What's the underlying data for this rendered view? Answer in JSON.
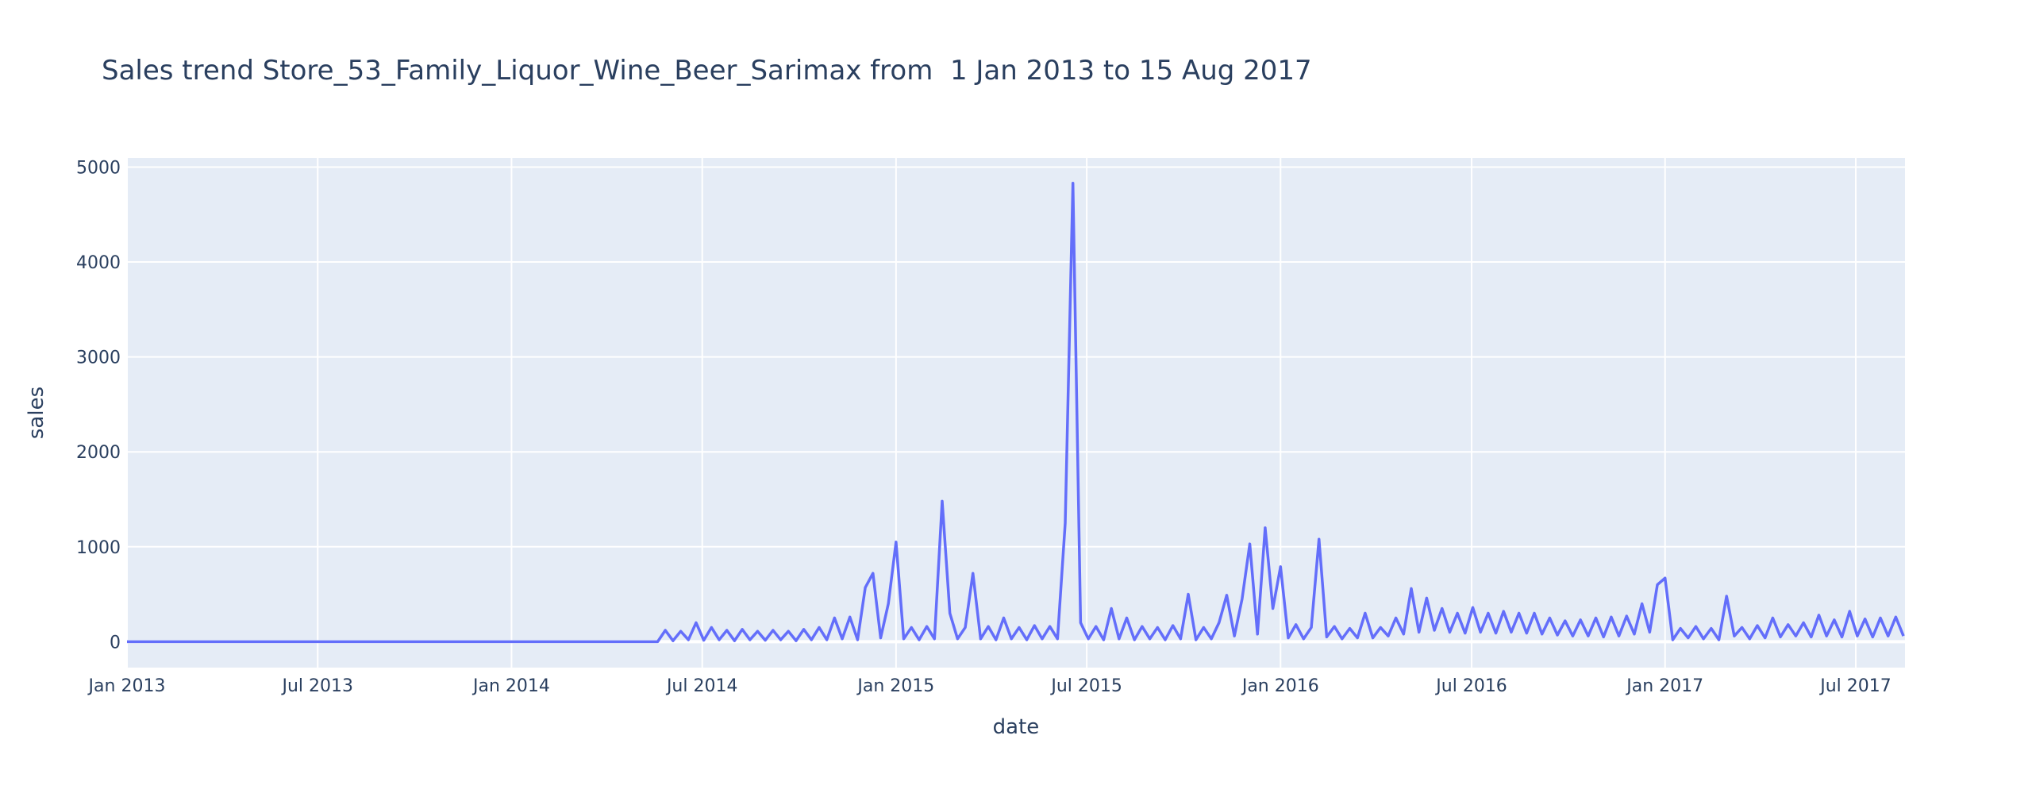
{
  "chart_data": {
    "type": "line",
    "title": "Sales trend Store_53_Family_Liquor_Wine_Beer_Sarimax from  1 Jan 2013 to 15 Aug 2017",
    "x_label": "date",
    "y_label": "sales",
    "color": "#636efa",
    "grid": true,
    "xlim": [
      2013.0,
      2017.624
    ],
    "ylim": [
      -273,
      5096
    ],
    "xticks": [
      {
        "value": 2013.0,
        "label": "Jan 2013"
      },
      {
        "value": 2013.496,
        "label": "Jul 2013"
      },
      {
        "value": 2014.0,
        "label": "Jan 2014"
      },
      {
        "value": 2014.496,
        "label": "Jul 2014"
      },
      {
        "value": 2015.0,
        "label": "Jan 2015"
      },
      {
        "value": 2015.496,
        "label": "Jul 2015"
      },
      {
        "value": 2016.0,
        "label": "Jan 2016"
      },
      {
        "value": 2016.497,
        "label": "Jul 2016"
      },
      {
        "value": 2017.0,
        "label": "Jan 2017"
      },
      {
        "value": 2017.496,
        "label": "Jul 2017"
      }
    ],
    "yticks": [
      0,
      1000,
      2000,
      3000,
      4000,
      5000
    ],
    "x": [
      2013.0,
      2014.38,
      2014.4,
      2014.42,
      2014.44,
      2014.46,
      2014.48,
      2014.5,
      2014.52,
      2014.54,
      2014.56,
      2014.58,
      2014.6,
      2014.62,
      2014.64,
      2014.66,
      2014.68,
      2014.7,
      2014.72,
      2014.74,
      2014.76,
      2014.78,
      2014.8,
      2014.82,
      2014.84,
      2014.86,
      2014.88,
      2014.9,
      2014.92,
      2014.94,
      2014.96,
      2014.98,
      2015.0,
      2015.02,
      2015.04,
      2015.06,
      2015.08,
      2015.1,
      2015.12,
      2015.14,
      2015.16,
      2015.18,
      2015.2,
      2015.22,
      2015.24,
      2015.26,
      2015.28,
      2015.3,
      2015.32,
      2015.34,
      2015.36,
      2015.38,
      2015.4,
      2015.42,
      2015.44,
      2015.46,
      2015.48,
      2015.5,
      2015.52,
      2015.54,
      2015.56,
      2015.58,
      2015.6,
      2015.62,
      2015.64,
      2015.66,
      2015.68,
      2015.7,
      2015.72,
      2015.74,
      2015.76,
      2015.78,
      2015.8,
      2015.82,
      2015.84,
      2015.86,
      2015.88,
      2015.9,
      2015.92,
      2015.94,
      2015.96,
      2015.98,
      2016.0,
      2016.02,
      2016.04,
      2016.06,
      2016.08,
      2016.1,
      2016.12,
      2016.14,
      2016.16,
      2016.18,
      2016.2,
      2016.22,
      2016.24,
      2016.26,
      2016.28,
      2016.3,
      2016.32,
      2016.34,
      2016.36,
      2016.38,
      2016.4,
      2016.42,
      2016.44,
      2016.46,
      2016.48,
      2016.5,
      2016.52,
      2016.54,
      2016.56,
      2016.58,
      2016.6,
      2016.62,
      2016.64,
      2016.66,
      2016.68,
      2016.7,
      2016.72,
      2016.74,
      2016.76,
      2016.78,
      2016.8,
      2016.82,
      2016.84,
      2016.86,
      2016.88,
      2016.9,
      2016.92,
      2016.94,
      2016.96,
      2016.98,
      2017.0,
      2017.02,
      2017.04,
      2017.06,
      2017.08,
      2017.1,
      2017.12,
      2017.14,
      2017.16,
      2017.18,
      2017.2,
      2017.22,
      2017.24,
      2017.26,
      2017.28,
      2017.3,
      2017.32,
      2017.34,
      2017.36,
      2017.38,
      2017.4,
      2017.42,
      2017.44,
      2017.46,
      2017.48,
      2017.5,
      2017.52,
      2017.54,
      2017.56,
      2017.58,
      2017.6,
      2017.62
    ],
    "values": [
      0,
      0,
      120,
      10,
      110,
      20,
      200,
      15,
      150,
      20,
      120,
      10,
      130,
      20,
      110,
      15,
      120,
      20,
      110,
      10,
      130,
      20,
      150,
      20,
      250,
      30,
      260,
      20,
      570,
      720,
      40,
      400,
      1050,
      30,
      150,
      20,
      160,
      30,
      1480,
      300,
      30,
      150,
      720,
      30,
      160,
      20,
      250,
      30,
      150,
      20,
      170,
      30,
      160,
      30,
      1250,
      4830,
      200,
      30,
      160,
      20,
      350,
      30,
      250,
      20,
      160,
      30,
      150,
      20,
      170,
      30,
      500,
      20,
      150,
      30,
      200,
      490,
      60,
      450,
      1030,
      80,
      1200,
      350,
      790,
      40,
      180,
      30,
      150,
      1080,
      50,
      160,
      30,
      140,
      40,
      300,
      40,
      150,
      60,
      250,
      80,
      560,
      100,
      460,
      120,
      350,
      100,
      300,
      90,
      360,
      100,
      300,
      90,
      320,
      100,
      300,
      90,
      300,
      80,
      250,
      70,
      220,
      60,
      230,
      60,
      250,
      50,
      260,
      60,
      270,
      80,
      400,
      100,
      600,
      670,
      20,
      140,
      40,
      160,
      30,
      140,
      20,
      480,
      60,
      150,
      30,
      170,
      40,
      250,
      50,
      180,
      60,
      200,
      50,
      280,
      60,
      230,
      50,
      320,
      60,
      240,
      50,
      250,
      60,
      260,
      60
    ]
  }
}
